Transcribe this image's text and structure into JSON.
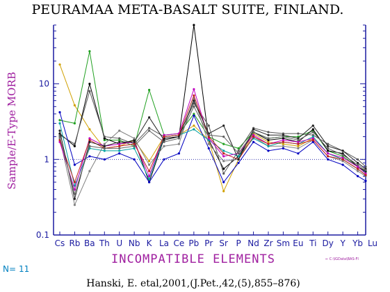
{
  "chart_data": {
    "type": "line",
    "title": "PEURAMAA META-BASALT SUITE, FINLAND.",
    "ylabel": "Sample/E-Type MORB",
    "xlabel": "INCOMPATIBLE ELEMENTS",
    "y_scale": "log",
    "ylim": [
      0.1,
      60
    ],
    "y_ticks": [
      {
        "value": 0.1,
        "label": "0.1"
      },
      {
        "value": 1,
        "label": "1"
      },
      {
        "value": 10,
        "label": "10"
      }
    ],
    "reference_line": 1,
    "categories": [
      "Cs",
      "Rb",
      "Ba",
      "Th",
      "U",
      "Nb",
      "K",
      "La",
      "Ce",
      "Pb",
      "Pr",
      "Sr",
      "P",
      "Nd",
      "Zr",
      "Sm",
      "Eu",
      "Ti",
      "Dy",
      "Y",
      "Yb",
      "Lu"
    ],
    "series": [
      {
        "color": "#d0a000",
        "values": [
          18,
          5.2,
          2.5,
          1.4,
          1.5,
          1.8,
          0.95,
          2.0,
          2.1,
          2.8,
          1.8,
          0.38,
          1.0,
          2.2,
          1.7,
          1.6,
          1.5,
          1.9,
          1.2,
          1.0,
          0.75,
          0.62
        ]
      },
      {
        "color": "#20a020",
        "values": [
          3.3,
          3.0,
          27,
          1.8,
          1.8,
          1.5,
          8.3,
          2.1,
          2.2,
          4.0,
          2.0,
          1.6,
          1.4,
          2.3,
          1.9,
          2.0,
          2.0,
          2.4,
          1.3,
          1.1,
          0.8,
          0.68
        ]
      },
      {
        "color": "#000000",
        "values": [
          2.2,
          1.5,
          10,
          1.9,
          1.6,
          1.8,
          0.5,
          1.9,
          2.0,
          60,
          1.8,
          0.75,
          1.1,
          2.3,
          1.8,
          1.9,
          1.7,
          2.5,
          1.3,
          1.2,
          0.8,
          0.7
        ]
      },
      {
        "color": "#555555",
        "values": [
          2.1,
          1.6,
          8.0,
          2.0,
          1.9,
          1.6,
          2.6,
          2.0,
          2.1,
          5.5,
          2.8,
          0.65,
          1.3,
          2.6,
          2.3,
          2.2,
          2.2,
          2.1,
          1.6,
          1.3,
          1.0,
          0.8
        ]
      },
      {
        "color": "#808080",
        "values": [
          1.9,
          0.25,
          0.7,
          1.6,
          2.4,
          1.9,
          0.85,
          1.5,
          1.6,
          6.5,
          1.6,
          0.95,
          1.0,
          2.0,
          1.5,
          1.5,
          1.4,
          1.8,
          1.1,
          0.95,
          0.7,
          0.6
        ]
      },
      {
        "color": "#0000c0",
        "values": [
          4.2,
          0.85,
          1.1,
          1.0,
          1.2,
          1.0,
          0.5,
          1.0,
          1.2,
          3.8,
          1.4,
          0.5,
          0.9,
          1.7,
          1.3,
          1.4,
          1.2,
          1.7,
          1.0,
          0.85,
          0.6,
          0.52
        ]
      },
      {
        "color": "#00a0a0",
        "values": [
          3.0,
          0.45,
          1.4,
          1.3,
          1.3,
          1.4,
          0.55,
          2.0,
          2.1,
          2.5,
          1.8,
          1.3,
          1.1,
          1.9,
          1.5,
          1.7,
          1.6,
          2.0,
          1.2,
          1.0,
          0.75,
          0.62
        ]
      },
      {
        "color": "#c000c0",
        "values": [
          1.7,
          0.4,
          1.9,
          1.5,
          1.6,
          1.7,
          0.6,
          2.1,
          2.2,
          8.5,
          1.9,
          1.1,
          1.2,
          2.1,
          1.6,
          1.8,
          1.7,
          1.9,
          1.2,
          1.05,
          0.8,
          0.65
        ]
      },
      {
        "color": "#c02020",
        "values": [
          1.8,
          0.5,
          1.8,
          1.4,
          1.5,
          1.6,
          0.7,
          2.0,
          2.1,
          7.0,
          2.0,
          1.2,
          1.0,
          2.0,
          1.6,
          1.7,
          1.6,
          1.8,
          1.1,
          1.0,
          0.75,
          0.62
        ]
      },
      {
        "color": "#202020",
        "values": [
          2.4,
          0.3,
          1.7,
          1.5,
          1.7,
          1.7,
          3.6,
          1.8,
          2.0,
          6.0,
          2.2,
          2.8,
          1.0,
          2.5,
          2.1,
          2.1,
          1.9,
          2.8,
          1.5,
          1.3,
          0.9,
          0.75
        ]
      },
      {
        "color": "#606060",
        "values": [
          2.0,
          0.35,
          1.5,
          1.4,
          1.4,
          1.5,
          2.4,
          1.7,
          1.9,
          5.0,
          2.1,
          2.0,
          1.2,
          2.3,
          1.9,
          2.0,
          1.8,
          2.3,
          1.4,
          1.15,
          0.85,
          0.72
        ]
      }
    ]
  },
  "n_label": "N=",
  "n_value": "11",
  "citation": "Hanski, E. etal,2001,(J.Pet.,42,(5),855–876)",
  "file_path": "⇐ C:\\IGData\\BAS-FI"
}
